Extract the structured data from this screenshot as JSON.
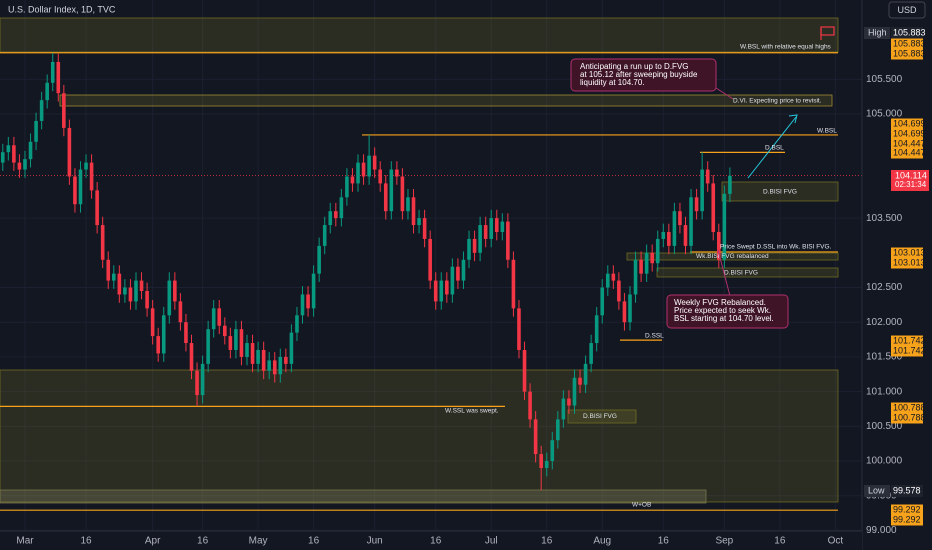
{
  "chart_data": {
    "type": "candlestick",
    "title": "U.S. Dollar Index, 1D, TVC",
    "currency": "USD",
    "countdown": "02:31:34",
    "up_color": "#089981",
    "down_color": "#f23645",
    "grid": true,
    "ylim": [
      98.718,
      106.643
    ],
    "yticks": [
      {
        "value": 99,
        "label": "99.000"
      },
      {
        "value": 99.5,
        "label": "99.500"
      },
      {
        "value": 100,
        "label": "100.000"
      },
      {
        "value": 100.5,
        "label": "100.500"
      },
      {
        "value": 101,
        "label": "101.000"
      },
      {
        "value": 101.5,
        "label": "101.500"
      },
      {
        "value": 102,
        "label": "102.000"
      },
      {
        "value": 102.5,
        "label": "102.500"
      },
      {
        "value": 103.5,
        "label": "103.500"
      },
      {
        "value": 105,
        "label": "105.000"
      },
      {
        "value": 105.5,
        "label": "105.500"
      }
    ],
    "xlim": [
      -0.5,
      154.8
    ],
    "xticks": [
      {
        "value": 4,
        "label": "Mar"
      },
      {
        "value": 15,
        "label": "16"
      },
      {
        "value": 27,
        "label": "Apr"
      },
      {
        "value": 36,
        "label": "16"
      },
      {
        "value": 46,
        "label": "May"
      },
      {
        "value": 56,
        "label": "16"
      },
      {
        "value": 67,
        "label": "Jun"
      },
      {
        "value": 78,
        "label": "16"
      },
      {
        "value": 88,
        "label": "Jul"
      },
      {
        "value": 98,
        "label": "16"
      },
      {
        "value": 108,
        "label": "Aug"
      },
      {
        "value": 119,
        "label": "16"
      },
      {
        "value": 130,
        "label": "Sep"
      },
      {
        "value": 140,
        "label": "16"
      },
      {
        "value": 150,
        "label": "Oct"
      }
    ],
    "ohlc": [
      [
        104.3,
        104.57,
        104.18,
        104.45
      ],
      [
        104.45,
        104.67,
        104.33,
        104.55
      ],
      [
        104.55,
        104.67,
        104.18,
        104.3
      ],
      [
        104.3,
        104.42,
        104.08,
        104.2
      ],
      [
        104.2,
        104.47,
        104.08,
        104.35
      ],
      [
        104.35,
        104.72,
        104.23,
        104.6
      ],
      [
        104.6,
        105.02,
        104.48,
        104.9
      ],
      [
        104.9,
        105.32,
        104.78,
        105.2
      ],
      [
        105.2,
        105.57,
        105.08,
        105.45
      ],
      [
        105.45,
        105.88,
        105.33,
        105.75
      ],
      [
        105.75,
        105.87,
        105.18,
        105.3
      ],
      [
        105.3,
        105.42,
        104.68,
        104.8
      ],
      [
        104.8,
        104.92,
        103.98,
        104.1
      ],
      [
        104.1,
        104.22,
        103.58,
        103.7
      ],
      [
        103.7,
        104.32,
        103.58,
        104.2
      ],
      [
        104.2,
        104.42,
        104.08,
        104.3
      ],
      [
        104.3,
        104.42,
        103.78,
        103.9
      ],
      [
        103.9,
        104.02,
        103.28,
        103.4
      ],
      [
        103.4,
        103.52,
        102.78,
        102.9
      ],
      [
        102.9,
        103.02,
        102.48,
        102.6
      ],
      [
        102.6,
        102.82,
        102.48,
        102.7
      ],
      [
        102.7,
        102.82,
        102.28,
        102.4
      ],
      [
        102.4,
        102.62,
        102.28,
        102.5
      ],
      [
        102.5,
        102.62,
        102.18,
        102.3
      ],
      [
        102.3,
        102.72,
        102.18,
        102.6
      ],
      [
        102.6,
        102.72,
        102.33,
        102.45
      ],
      [
        102.45,
        102.57,
        102.08,
        102.2
      ],
      [
        102.2,
        102.32,
        101.68,
        101.8
      ],
      [
        101.8,
        101.92,
        101.43,
        101.55
      ],
      [
        101.55,
        102.22,
        101.43,
        102.1
      ],
      [
        102.1,
        102.72,
        101.98,
        102.6
      ],
      [
        102.6,
        102.72,
        102.18,
        102.3
      ],
      [
        102.3,
        102.42,
        101.88,
        102.0
      ],
      [
        102.0,
        102.12,
        101.58,
        101.7
      ],
      [
        101.7,
        101.82,
        101.18,
        101.3
      ],
      [
        101.3,
        101.42,
        100.79,
        100.95
      ],
      [
        100.95,
        101.52,
        100.83,
        101.4
      ],
      [
        101.4,
        102.02,
        101.28,
        101.9
      ],
      [
        101.9,
        102.32,
        101.78,
        102.2
      ],
      [
        102.2,
        102.32,
        101.83,
        101.95
      ],
      [
        101.95,
        102.07,
        101.68,
        101.8
      ],
      [
        101.8,
        101.92,
        101.48,
        101.6
      ],
      [
        101.6,
        102.02,
        101.48,
        101.9
      ],
      [
        101.9,
        102.02,
        101.38,
        101.5
      ],
      [
        101.5,
        101.82,
        101.38,
        101.7
      ],
      [
        101.7,
        101.82,
        101.28,
        101.4
      ],
      [
        101.4,
        101.72,
        101.28,
        101.6
      ],
      [
        101.6,
        101.72,
        101.18,
        101.3
      ],
      [
        101.3,
        101.57,
        101.18,
        101.45
      ],
      [
        101.45,
        101.57,
        101.13,
        101.25
      ],
      [
        101.25,
        101.62,
        101.13,
        101.5
      ],
      [
        101.5,
        101.62,
        101.28,
        101.4
      ],
      [
        101.4,
        101.97,
        101.28,
        101.85
      ],
      [
        101.85,
        102.22,
        101.73,
        102.1
      ],
      [
        102.1,
        102.52,
        101.98,
        102.4
      ],
      [
        102.4,
        102.52,
        102.08,
        102.2
      ],
      [
        102.2,
        102.82,
        102.08,
        102.7
      ],
      [
        102.7,
        103.22,
        102.58,
        103.1
      ],
      [
        103.1,
        103.52,
        102.98,
        103.4
      ],
      [
        103.4,
        103.72,
        103.28,
        103.6
      ],
      [
        103.6,
        103.72,
        103.38,
        103.5
      ],
      [
        103.5,
        103.92,
        103.38,
        103.8
      ],
      [
        103.8,
        104.22,
        103.68,
        104.1
      ],
      [
        104.1,
        104.22,
        103.88,
        104.0
      ],
      [
        104.0,
        104.42,
        103.88,
        104.3
      ],
      [
        104.3,
        104.42,
        103.98,
        104.1
      ],
      [
        104.1,
        104.7,
        103.98,
        104.4
      ],
      [
        104.4,
        104.52,
        104.08,
        104.2
      ],
      [
        104.2,
        104.32,
        103.88,
        104.0
      ],
      [
        104.0,
        104.12,
        103.48,
        103.6
      ],
      [
        103.6,
        104.32,
        103.48,
        104.2
      ],
      [
        104.2,
        104.32,
        103.98,
        104.1
      ],
      [
        104.1,
        104.22,
        103.48,
        103.6
      ],
      [
        103.6,
        103.92,
        103.48,
        103.8
      ],
      [
        103.8,
        103.92,
        103.28,
        103.4
      ],
      [
        103.4,
        103.62,
        103.28,
        103.5
      ],
      [
        103.5,
        103.62,
        103.08,
        103.2
      ],
      [
        103.2,
        103.32,
        102.48,
        102.6
      ],
      [
        102.6,
        102.72,
        102.18,
        102.3
      ],
      [
        102.3,
        102.72,
        102.18,
        102.6
      ],
      [
        102.6,
        102.72,
        102.28,
        102.4
      ],
      [
        102.4,
        102.92,
        102.28,
        102.8
      ],
      [
        102.8,
        102.92,
        102.48,
        102.6
      ],
      [
        102.6,
        103.02,
        102.48,
        102.9
      ],
      [
        102.9,
        103.32,
        102.78,
        103.2
      ],
      [
        103.2,
        103.32,
        102.88,
        103.0
      ],
      [
        103.0,
        103.52,
        102.88,
        103.4
      ],
      [
        103.4,
        103.52,
        103.08,
        103.2
      ],
      [
        103.2,
        103.62,
        103.08,
        103.5
      ],
      [
        103.5,
        103.62,
        103.18,
        103.3
      ],
      [
        103.3,
        103.57,
        103.18,
        103.45
      ],
      [
        103.45,
        103.57,
        102.78,
        102.9
      ],
      [
        102.9,
        103.02,
        102.08,
        102.2
      ],
      [
        102.2,
        102.32,
        101.48,
        101.6
      ],
      [
        101.6,
        101.72,
        100.88,
        101.0
      ],
      [
        101.0,
        101.12,
        100.48,
        100.6
      ],
      [
        100.6,
        100.72,
        99.98,
        100.1
      ],
      [
        100.1,
        100.22,
        99.58,
        99.9
      ],
      [
        99.9,
        100.12,
        99.78,
        100.0
      ],
      [
        100.0,
        100.42,
        99.88,
        100.3
      ],
      [
        100.3,
        100.72,
        100.18,
        100.6
      ],
      [
        100.6,
        101.02,
        100.48,
        100.9
      ],
      [
        100.9,
        101.02,
        100.68,
        100.8
      ],
      [
        100.8,
        101.32,
        100.68,
        101.2
      ],
      [
        101.2,
        101.32,
        100.98,
        101.1
      ],
      [
        101.1,
        101.52,
        100.98,
        101.4
      ],
      [
        101.4,
        101.82,
        101.28,
        101.7
      ],
      [
        101.7,
        102.22,
        101.58,
        102.1
      ],
      [
        102.1,
        102.62,
        101.98,
        102.5
      ],
      [
        102.5,
        102.82,
        102.38,
        102.7
      ],
      [
        102.7,
        102.82,
        102.48,
        102.6
      ],
      [
        102.6,
        102.72,
        102.18,
        102.3
      ],
      [
        102.3,
        102.42,
        101.88,
        102.0
      ],
      [
        102.0,
        102.52,
        101.88,
        102.4
      ],
      [
        102.4,
        103.02,
        102.28,
        102.9
      ],
      [
        102.9,
        103.02,
        102.58,
        102.7
      ],
      [
        102.7,
        103.12,
        102.58,
        103.0
      ],
      [
        103.0,
        103.12,
        102.73,
        102.85
      ],
      [
        102.85,
        103.32,
        102.73,
        103.2
      ],
      [
        103.2,
        103.42,
        103.08,
        103.3
      ],
      [
        103.3,
        103.42,
        102.98,
        103.1
      ],
      [
        103.1,
        103.72,
        102.98,
        103.6
      ],
      [
        103.6,
        103.72,
        103.28,
        103.4
      ],
      [
        103.4,
        103.52,
        102.98,
        103.1
      ],
      [
        103.1,
        103.92,
        102.98,
        103.8
      ],
      [
        103.8,
        103.92,
        103.48,
        103.6
      ],
      [
        103.6,
        104.45,
        103.48,
        104.2
      ],
      [
        104.2,
        104.32,
        103.88,
        104.0
      ],
      [
        104.0,
        104.12,
        103.18,
        103.3
      ],
      [
        103.3,
        103.42,
        102.78,
        102.9
      ],
      [
        102.9,
        103.97,
        102.78,
        103.85
      ],
      [
        103.85,
        104.23,
        103.73,
        104.11
      ]
    ],
    "price_tags": [
      {
        "name": "High",
        "value": 105.883
      },
      {
        "value": 105.883
      },
      {
        "value": 105.883
      },
      {
        "value": 104.699
      },
      {
        "value": 104.699
      },
      {
        "value": 104.447
      },
      {
        "value": 104.447
      },
      {
        "value": 104.114
      },
      {
        "value": 103.013
      },
      {
        "value": 103.013
      },
      {
        "value": 101.742
      },
      {
        "value": 101.742
      },
      {
        "value": 100.788
      },
      {
        "value": 100.788
      },
      {
        "name": "Low",
        "value": 99.578
      },
      {
        "value": 99.292
      },
      {
        "value": 99.292
      }
    ],
    "annotations": [
      "W.BSL with relative equal highs",
      "D.VI. Expecting price to revisit.",
      "W.BSL",
      "D.BSL",
      "D.BISI FVG",
      "Price Swept D.SSL into Wk. BISI FVG.",
      "Wk.BISI FVG rebalanced",
      "D.BISI FVG",
      "D.SSL",
      "W.SSL was swept.",
      "D.BISI FVG",
      "W+OB"
    ],
    "callouts": [
      [
        "Anticipating a run up to D.FVG",
        "at 105.12 after sweeping buyside",
        "liquidity at 104.70."
      ],
      [
        "Weekly FVG Rebalanced.",
        "Price expected to seek Wk.",
        "BSL starting at 104.70 level."
      ]
    ]
  }
}
